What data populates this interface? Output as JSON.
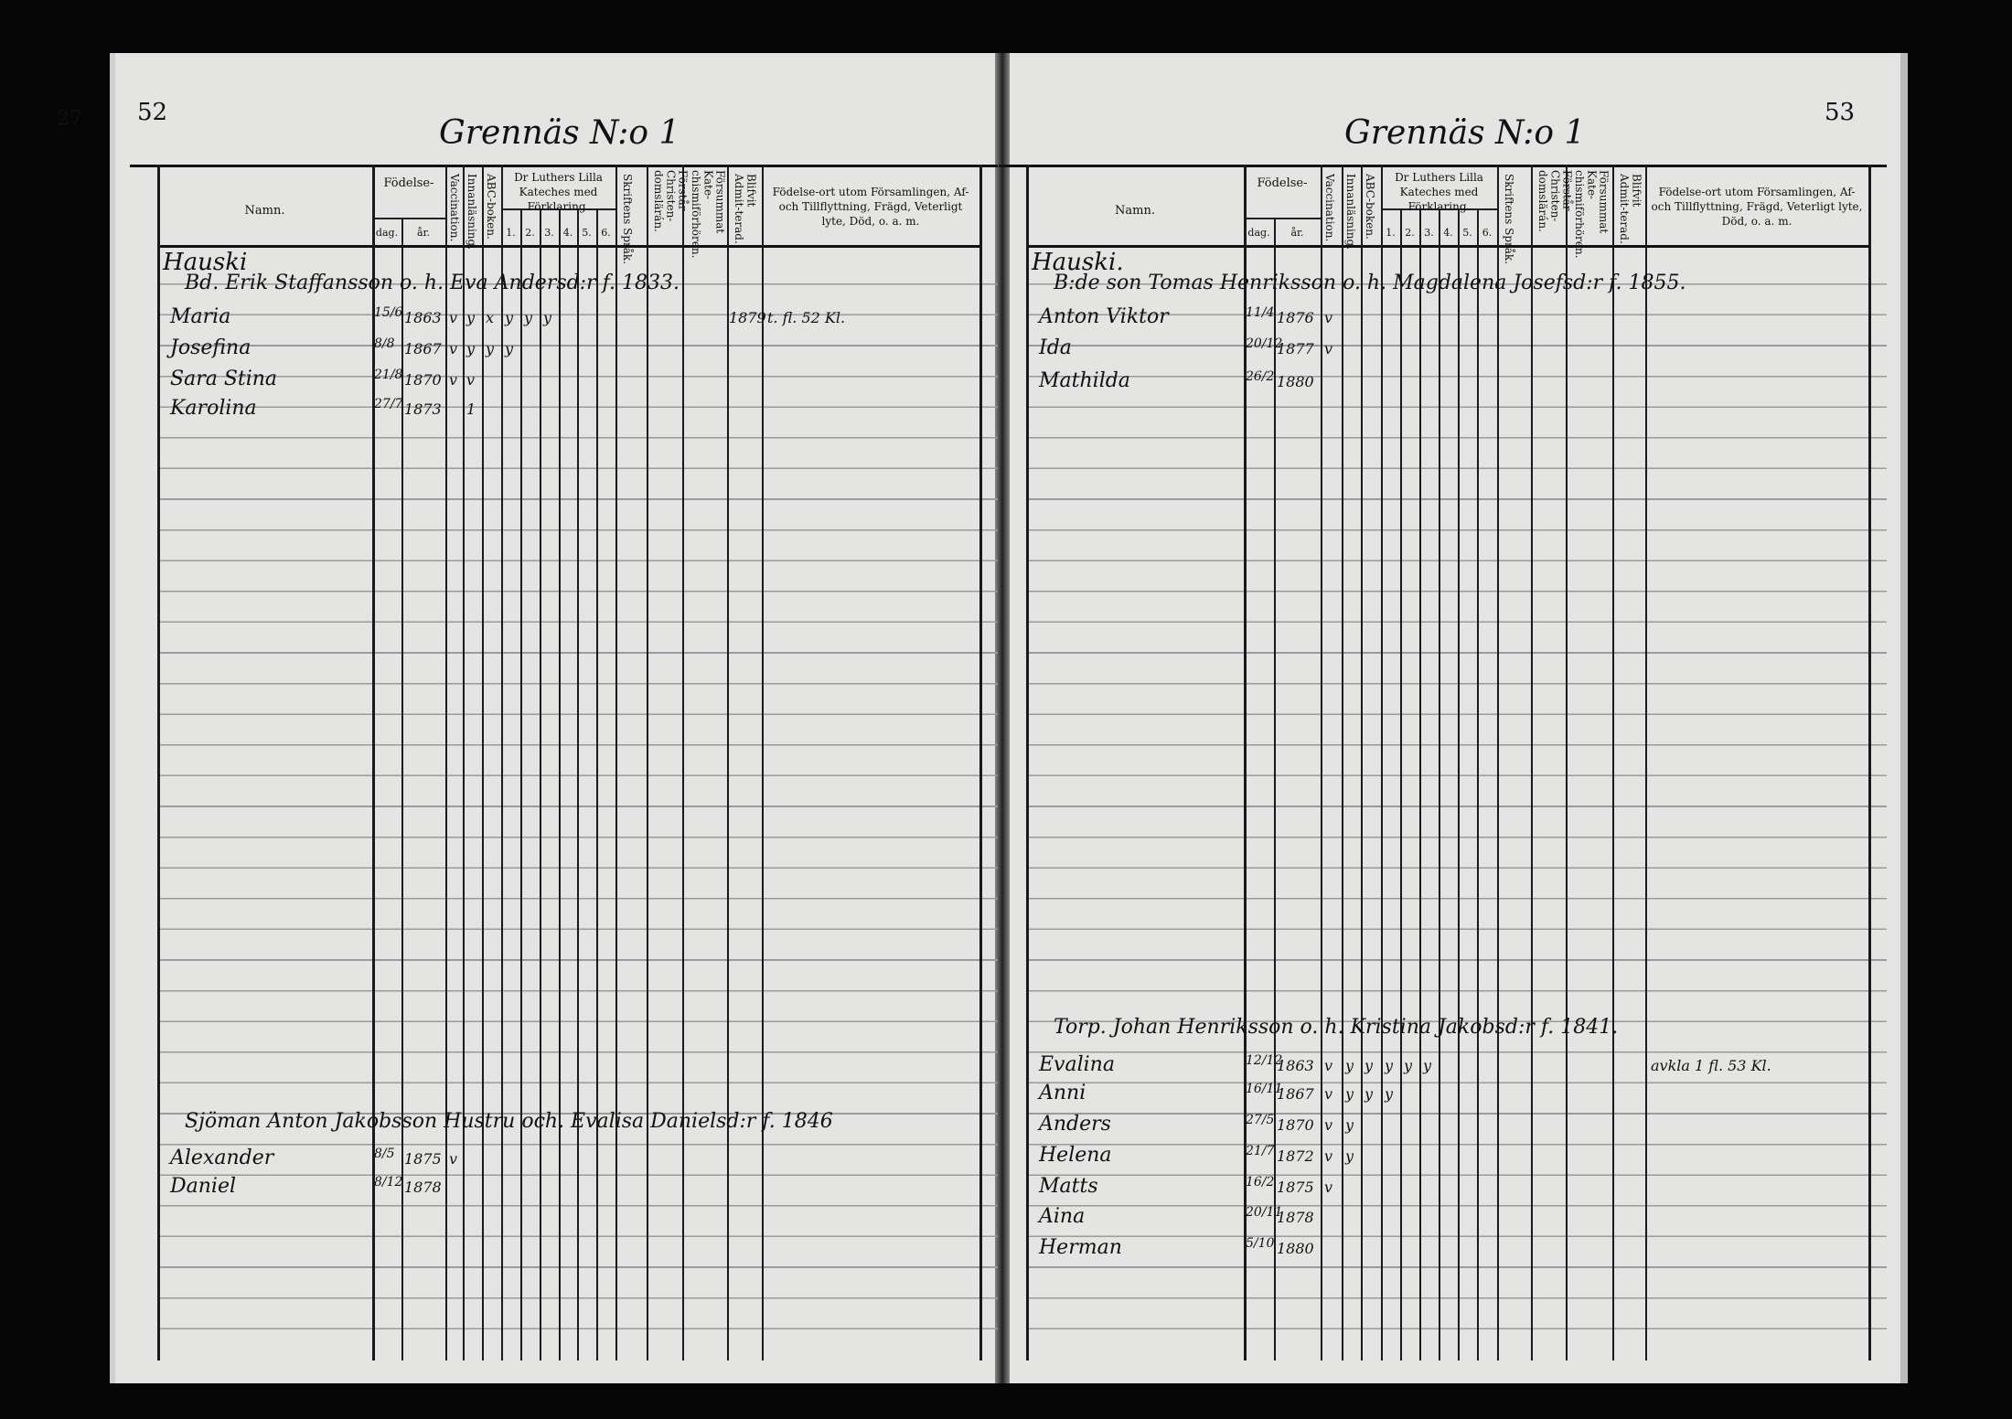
{
  "left_page": {
    "page_number": "52",
    "margin_fragment": "27",
    "title": "Grennäs N:o 1",
    "surname": "Hauski",
    "headers": {
      "namn": "Namn.",
      "fodelse": "Födelse-",
      "dag": "dag.",
      "ar": "år.",
      "vaccination": "Vaccination.",
      "innanlasning": "Innanläsning.",
      "abc": "ABC-boken.",
      "katekes": "Dr Luthers Lilla Kateches med Förklaring.",
      "nums": [
        "1.",
        "2.",
        "3.",
        "4.",
        "5.",
        "6."
      ],
      "skriftens": "Skriftens Språk.",
      "forstar": "Förstår Christen-domslärán.",
      "forsummat": "Försummat Kate-chismiförhören.",
      "blifvit": "Blifvit Admit-terad.",
      "fodelseort": "Födelse-ort utom Församlingen, Af- och Tillflyttning, Frägd, Veterligt lyte, Död, o. a. m."
    },
    "households": [
      {
        "head": "Bd. Erik Staffansson o. h. Eva Andersd:r f. 1833.",
        "members": [
          {
            "name": "Maria",
            "dag": "15/6",
            "ar": "1863",
            "marks": [
              "v",
              "y",
              "x",
              "y",
              "y",
              "y"
            ],
            "admit": "1879",
            "note": "t. fl. 52 Kl."
          },
          {
            "name": "Josefina",
            "dag": "8/8",
            "ar": "1867",
            "marks": [
              "v",
              "y",
              "y",
              "y"
            ]
          },
          {
            "name": "Sara Stina",
            "dag": "21/8",
            "ar": "1870",
            "marks": [
              "v",
              "v"
            ]
          },
          {
            "name": "Karolina",
            "dag": "27/7",
            "ar": "1873",
            "marks": [
              "",
              "1"
            ]
          }
        ]
      },
      {
        "head": "Sjöman Anton Jakobsson Hustru och. Evalisa Danielsd:r f. 1846",
        "members": [
          {
            "name": "Alexander",
            "dag": "8/5",
            "ar": "1875",
            "marks": [
              "v"
            ]
          },
          {
            "name": "Daniel",
            "dag": "8/12",
            "ar": "1878",
            "marks": []
          }
        ]
      }
    ]
  },
  "right_page": {
    "page_number": "53",
    "title": "Grennäs N:o 1",
    "surname": "Hauski.",
    "headers": {
      "namn": "Namn.",
      "fodelse": "Födelse-",
      "dag": "dag.",
      "ar": "år.",
      "vaccination": "Vaccination.",
      "innanlasning": "Innanläsning.",
      "abc": "ABC-boken.",
      "katekes": "Dr Luthers Lilla Kateches med Förklaring.",
      "nums": [
        "1.",
        "2.",
        "3.",
        "4.",
        "5.",
        "6."
      ],
      "skriftens": "Skriftens Språk.",
      "forstar": "Förstår Christen-domslärán.",
      "forsummat": "Försummat Kate-chismiförhören.",
      "blifvit": "Blifvit Admit-terad.",
      "fodelseort": "Födelse-ort utom Församlingen, Af- och Tillflyttning, Frägd, Veterligt lyte, Död, o. a. m."
    },
    "households": [
      {
        "head": "B:de son Tomas Henriksson o. h. Magdalena Josefsd:r f. 1855.",
        "members": [
          {
            "name": "Anton Viktor",
            "dag": "11/4",
            "ar": "1876",
            "marks": [
              "v"
            ]
          },
          {
            "name": "Ida",
            "dag": "20/12",
            "ar": "1877",
            "marks": [
              "v"
            ]
          },
          {
            "name": "Mathilda",
            "dag": "26/2",
            "ar": "1880",
            "marks": []
          }
        ]
      },
      {
        "head": "Torp. Johan Henriksson o. h. Kristina Jakobsd:r f. 1841.",
        "members": [
          {
            "name": "Evalina",
            "dag": "12/12",
            "ar": "1863",
            "marks": [
              "v",
              "y",
              "y",
              "y",
              "y",
              "y"
            ],
            "note": "avkla 1 fl. 53 Kl."
          },
          {
            "name": "Anni",
            "dag": "16/11",
            "ar": "1867",
            "marks": [
              "v",
              "y",
              "y",
              "y"
            ]
          },
          {
            "name": "Anders",
            "dag": "27/5",
            "ar": "1870",
            "marks": [
              "v",
              "y"
            ]
          },
          {
            "name": "Helena",
            "dag": "21/7",
            "ar": "1872",
            "marks": [
              "v",
              "y"
            ]
          },
          {
            "name": "Matts",
            "dag": "16/2",
            "ar": "1875",
            "marks": [
              "v"
            ]
          },
          {
            "name": "Aina",
            "dag": "20/11",
            "ar": "1878",
            "marks": []
          },
          {
            "name": "Herman",
            "dag": "5/10",
            "ar": "1880",
            "marks": []
          }
        ]
      }
    ]
  },
  "colors": {
    "paper": "#e4e4e2",
    "ink": "#111111",
    "background": "#060606"
  }
}
